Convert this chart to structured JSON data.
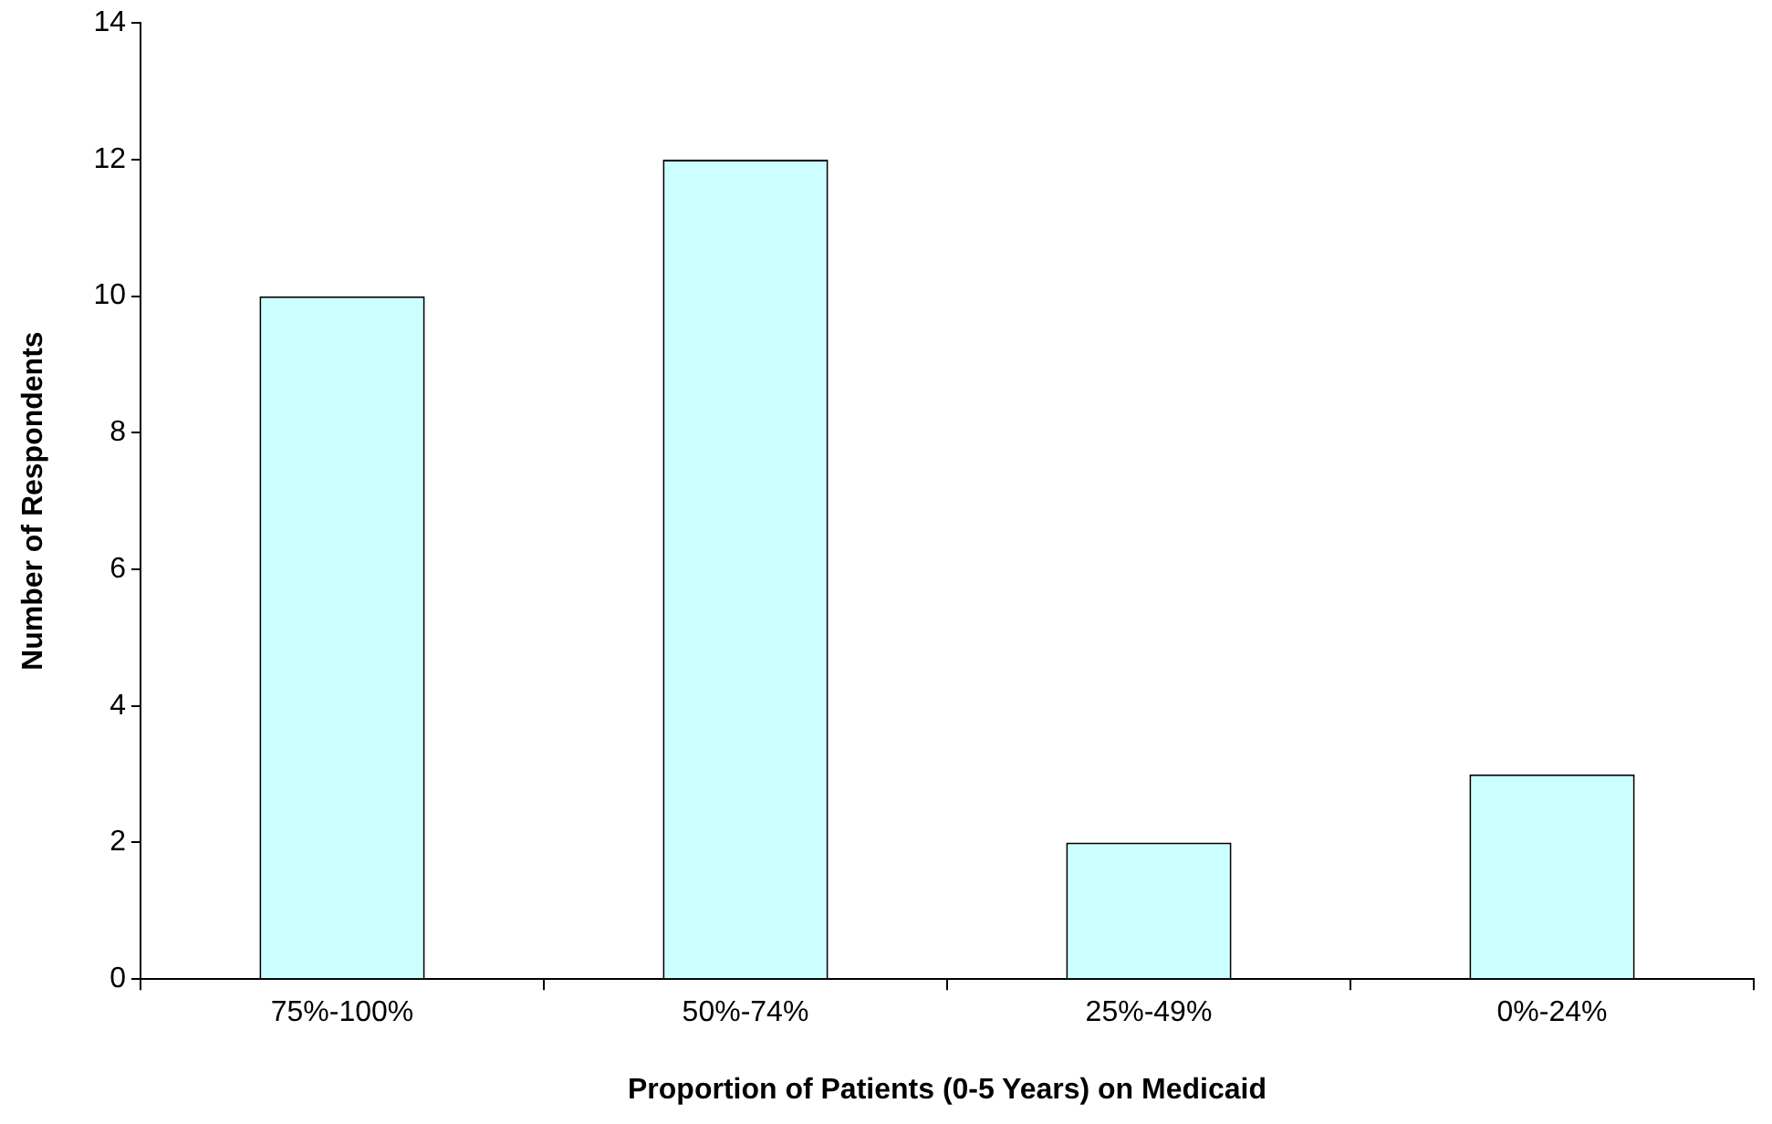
{
  "chart_data": {
    "type": "bar",
    "xlabel": "Proportion of Patients (0-5 Years) on Medicaid",
    "ylabel": "Number of Respondents",
    "categories": [
      "75%-100%",
      "50%-74%",
      "25%-49%",
      "0%-24%"
    ],
    "values": [
      10,
      12,
      2,
      3
    ],
    "color": "#ccffff",
    "ylim": [
      0,
      14
    ],
    "yticks": [
      0,
      2,
      4,
      6,
      8,
      10,
      12,
      14
    ],
    "grid": false
  }
}
